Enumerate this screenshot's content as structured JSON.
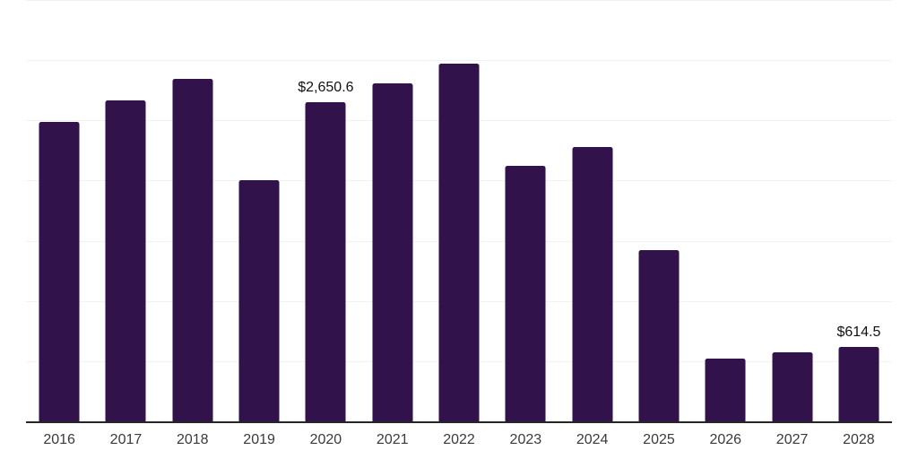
{
  "chart": {
    "colors": {
      "bar": "#32124a",
      "axis": "#262626",
      "gridline": "#f2f2f3",
      "tick_label": "#3a3a3a",
      "value_label": "#111111"
    }
  },
  "chart_data": {
    "type": "bar",
    "title": "",
    "xlabel": "",
    "ylabel": "",
    "categories": [
      "2016",
      "2017",
      "2018",
      "2019",
      "2020",
      "2021",
      "2022",
      "2023",
      "2024",
      "2025",
      "2026",
      "2027",
      "2028"
    ],
    "values": [
      2490,
      2665,
      2845,
      2000,
      2650.6,
      2805,
      2970,
      2120,
      2280,
      1420,
      525,
      575,
      614.5
    ],
    "point_labels": [
      null,
      null,
      null,
      null,
      "$2,650.6",
      null,
      null,
      null,
      null,
      null,
      null,
      null,
      "$614.5"
    ],
    "ylim": [
      0,
      3500
    ],
    "gridline_interval": 500,
    "grid": "horizontal-only",
    "y_axis_labels_visible": false,
    "legend": "none"
  }
}
